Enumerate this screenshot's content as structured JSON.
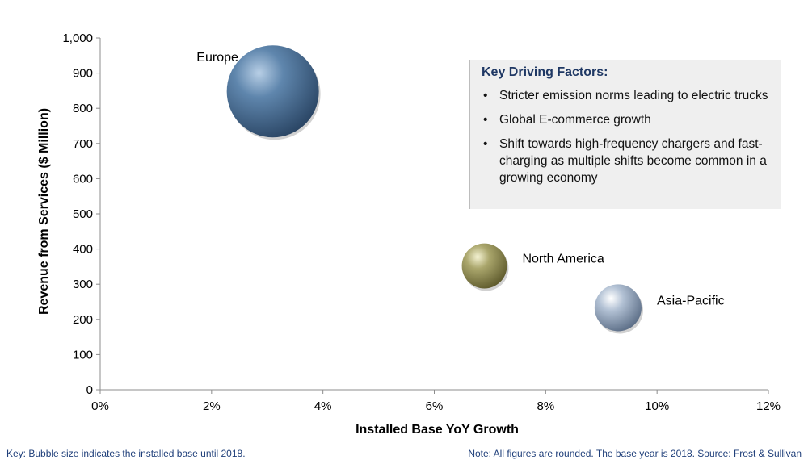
{
  "chart_data": {
    "type": "bubble",
    "xlabel": "Installed Base YoY Growth",
    "ylabel": "Revenue from Services  ($ Million)",
    "xlim": [
      0,
      12
    ],
    "ylim": [
      0,
      1000
    ],
    "x_ticks": [
      {
        "value": 0,
        "label": "0%"
      },
      {
        "value": 2,
        "label": "2%"
      },
      {
        "value": 4,
        "label": "4%"
      },
      {
        "value": 6,
        "label": "6%"
      },
      {
        "value": 8,
        "label": "8%"
      },
      {
        "value": 10,
        "label": "10%"
      },
      {
        "value": 12,
        "label": "12%"
      }
    ],
    "y_ticks": [
      {
        "value": 0,
        "label": "0"
      },
      {
        "value": 100,
        "label": "100"
      },
      {
        "value": 200,
        "label": "200"
      },
      {
        "value": 300,
        "label": "300"
      },
      {
        "value": 400,
        "label": "400"
      },
      {
        "value": 500,
        "label": "500"
      },
      {
        "value": 600,
        "label": "600"
      },
      {
        "value": 700,
        "label": "700"
      },
      {
        "value": 800,
        "label": "800"
      },
      {
        "value": 900,
        "label": "900"
      },
      {
        "value": 1000,
        "label": "1,000"
      }
    ],
    "grid": false,
    "points": [
      {
        "name": "Europe",
        "x": 3.1,
        "y": 848,
        "size": 100,
        "color": "#4a6f94",
        "label_side": "upper-left"
      },
      {
        "name": "North America",
        "x": 6.9,
        "y": 352,
        "size": 24,
        "color": "#9e9a62",
        "label_side": "right"
      },
      {
        "name": "Asia-Pacific",
        "x": 9.3,
        "y": 233,
        "size": 26,
        "color": "#9fb0c6",
        "label_side": "right"
      }
    ]
  },
  "key_box": {
    "title": "Key Driving Factors:",
    "bullet": "•",
    "items": [
      "Stricter emission norms leading to electric trucks",
      "Global E-commerce growth",
      "Shift towards high-frequency chargers and fast-charging as multiple shifts become common in a growing economy"
    ]
  },
  "footer": {
    "key_note": "Key: Bubble size indicates the installed base until 2018.",
    "source_note": "Note: All figures are rounded. The base year is 2018. Source: Frost & Sullivan"
  }
}
